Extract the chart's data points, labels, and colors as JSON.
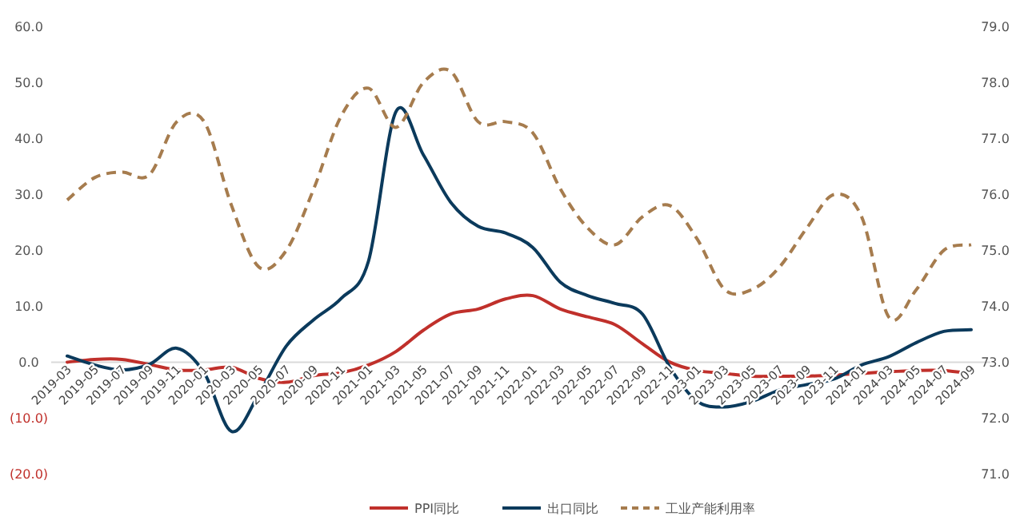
{
  "chart_data": {
    "type": "line",
    "categories": [
      "2019-03",
      "2019-05",
      "2019-07",
      "2019-09",
      "2019-11",
      "2020-01",
      "2020-03",
      "2020-05",
      "2020-07",
      "2020-09",
      "2020-11",
      "2021-01",
      "2021-03",
      "2021-05",
      "2021-07",
      "2021-09",
      "2021-11",
      "2022-01",
      "2022-03",
      "2022-05",
      "2022-07",
      "2022-09",
      "2022-11",
      "2023-01",
      "2023-03",
      "2023-05",
      "2023-07",
      "2023-09",
      "2023-11",
      "2024-01",
      "2024-03",
      "2024-05",
      "2024-07",
      "2024-09"
    ],
    "series": [
      {
        "name": "PPI同比",
        "color": "#c0302b",
        "values": [
          0.0,
          0.5,
          0.5,
          -0.4,
          -1.4,
          -1.4,
          -0.9,
          -2.9,
          -3.6,
          -2.4,
          -1.9,
          -0.5,
          1.9,
          5.7,
          8.6,
          9.5,
          11.3,
          11.9,
          9.5,
          8.1,
          6.7,
          3.3,
          0.0,
          -1.5,
          -2.0,
          -2.5,
          -2.5,
          -2.5,
          -2.3,
          -2.0,
          -1.7,
          -1.5,
          -1.5,
          -2.0
        ]
      },
      {
        "name": "出口同比",
        "color": "#0b3a5c",
        "values": [
          1.1,
          -0.5,
          -1.4,
          -0.4,
          2.5,
          -1.9,
          -12.4,
          -5.7,
          2.9,
          7.6,
          11.4,
          18.1,
          44.8,
          37.1,
          28.6,
          24.3,
          23.1,
          20.5,
          14.3,
          11.9,
          10.5,
          8.6,
          -0.9,
          -7.0,
          -8.0,
          -7.0,
          -5.0,
          -4.0,
          -3.0,
          -0.5,
          1.0,
          3.5,
          5.5,
          5.8
        ]
      },
      {
        "name": "工业产能利用率",
        "color": "#a67c4e",
        "axis": "y2",
        "line_style": "dashed",
        "values": [
          75.9,
          76.3,
          76.4,
          76.35,
          77.3,
          77.3,
          75.8,
          74.7,
          75.0,
          76.1,
          77.4,
          77.9,
          77.2,
          78.0,
          78.2,
          77.3,
          77.3,
          77.1,
          76.1,
          75.4,
          75.1,
          75.6,
          75.8,
          75.2,
          74.3,
          74.3,
          74.7,
          75.4,
          76.0,
          75.6,
          73.8,
          74.3,
          75.0,
          75.1
        ]
      }
    ],
    "ylim": [
      -20,
      60
    ],
    "yticks": [
      {
        "value": -20,
        "label": "(20.0)"
      },
      {
        "value": -10,
        "label": "(10.0)"
      },
      {
        "value": 0,
        "label": "0.0"
      },
      {
        "value": 10,
        "label": "10.0"
      },
      {
        "value": 20,
        "label": "20.0"
      },
      {
        "value": 30,
        "label": "30.0"
      },
      {
        "value": 40,
        "label": "40.0"
      },
      {
        "value": 50,
        "label": "50.0"
      },
      {
        "value": 60,
        "label": "60.0"
      }
    ],
    "y2lim": [
      71,
      79
    ],
    "y2ticks": [
      {
        "value": 71,
        "label": "71.0"
      },
      {
        "value": 72,
        "label": "72.0"
      },
      {
        "value": 73,
        "label": "73.0"
      },
      {
        "value": 74,
        "label": "74.0"
      },
      {
        "value": 75,
        "label": "75.0"
      },
      {
        "value": 76,
        "label": "76.0"
      },
      {
        "value": 77,
        "label": "77.0"
      },
      {
        "value": 78,
        "label": "78.0"
      },
      {
        "value": 79,
        "label": "79.0"
      }
    ],
    "legend": "bottom"
  }
}
